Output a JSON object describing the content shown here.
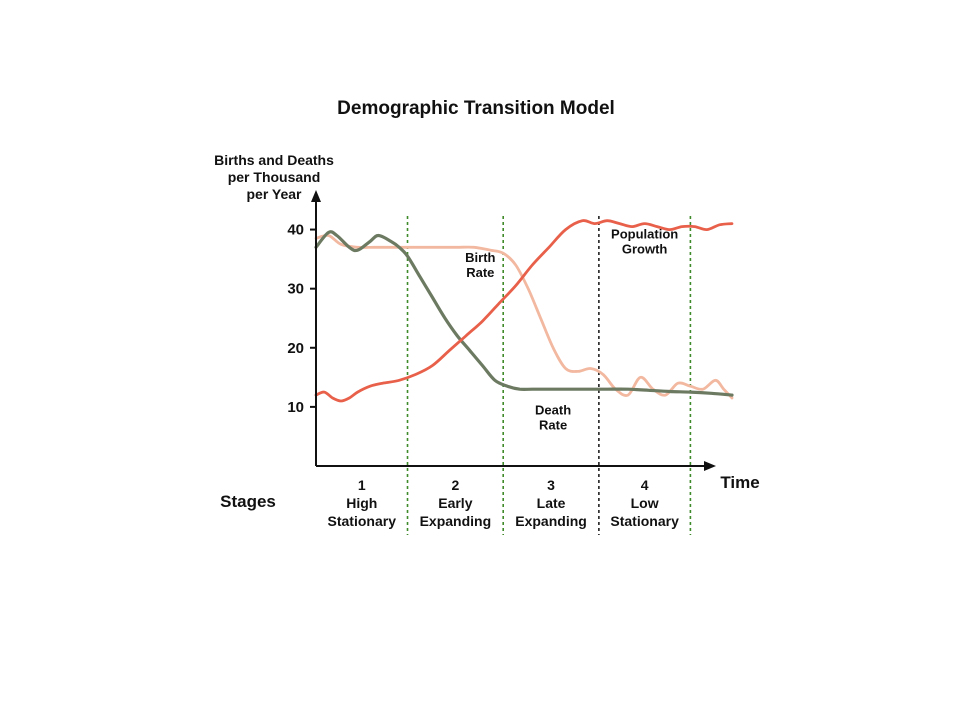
{
  "chart_data": {
    "type": "line",
    "title": "Demographic Transition Model",
    "ylabel_lines": [
      "Births and Deaths",
      "per Thousand",
      "per Year"
    ],
    "xlabel": "Time",
    "ylim": [
      0,
      45
    ],
    "xlim": [
      0,
      100
    ],
    "yticks": [
      "10",
      "20",
      "30",
      "40"
    ],
    "yticks_values": [
      10,
      20,
      30,
      40
    ],
    "stages_label": "Stages",
    "stage_boundaries": [
      22,
      45,
      68,
      90
    ],
    "stages": [
      {
        "number": "1",
        "line1": "High",
        "line2": "Stationary"
      },
      {
        "number": "2",
        "line1": "Early",
        "line2": "Expanding"
      },
      {
        "number": "3",
        "line1": "Late",
        "line2": "Expanding"
      },
      {
        "number": "4",
        "line1": "Low",
        "line2": "Stationary"
      }
    ],
    "series": [
      {
        "key": "birth",
        "color": "#f2b8a0",
        "x": [
          0,
          3,
          6,
          10,
          14,
          18,
          22,
          26,
          30,
          34,
          38,
          42,
          45,
          48,
          51,
          54,
          57,
          60,
          63,
          66,
          69,
          72,
          75,
          78,
          81,
          84,
          87,
          90,
          93,
          96,
          98,
          100
        ],
        "values": [
          38.5,
          39,
          37.5,
          37,
          37,
          37,
          37,
          37,
          37,
          37,
          37,
          36.5,
          36,
          34,
          30,
          25,
          20,
          16.5,
          16,
          16.5,
          15.5,
          13,
          12,
          15,
          13,
          12,
          14,
          13.5,
          13,
          14.5,
          13,
          11.5
        ]
      },
      {
        "key": "death",
        "color": "#6d7a62",
        "x": [
          0,
          3,
          5,
          8,
          10,
          13,
          15,
          18,
          20,
          22,
          25,
          28,
          31,
          34,
          37,
          40,
          43,
          46,
          49,
          52,
          56,
          60,
          65,
          70,
          75,
          80,
          85,
          90,
          95,
          100
        ],
        "values": [
          37,
          39.5,
          39,
          37,
          36.5,
          38,
          39,
          38,
          37,
          35.5,
          32,
          28.5,
          25,
          22,
          19.5,
          17,
          14.5,
          13.5,
          13,
          13,
          13,
          13,
          13,
          13,
          13,
          12.8,
          12.6,
          12.5,
          12.3,
          12
        ]
      },
      {
        "key": "population",
        "color": "#e8604a",
        "x": [
          0,
          2,
          4,
          6,
          8,
          10,
          13,
          16,
          20,
          24,
          28,
          32,
          36,
          40,
          44,
          48,
          52,
          56,
          60,
          64,
          67,
          70,
          73,
          76,
          79,
          82,
          85,
          88,
          91,
          94,
          97,
          100
        ],
        "values": [
          12,
          12.5,
          11.5,
          11,
          11.5,
          12.5,
          13.5,
          14,
          14.5,
          15.5,
          17,
          19.5,
          22,
          24.5,
          27.5,
          30.5,
          34,
          37,
          40,
          41.5,
          41,
          41.5,
          41,
          40.5,
          41,
          40.5,
          40,
          40.5,
          40.5,
          40,
          40.8,
          41
        ]
      }
    ],
    "annotations": [
      {
        "key": "birth_label",
        "lines": [
          "Birth",
          "Rate"
        ],
        "x": 39.5,
        "y": 34.5
      },
      {
        "key": "death_label",
        "lines": [
          "Death",
          "Rate"
        ],
        "x": 57,
        "y": 8.7
      },
      {
        "key": "pop_label",
        "lines": [
          "Population",
          "Growth"
        ],
        "x": 79,
        "y": 38.5
      }
    ]
  }
}
